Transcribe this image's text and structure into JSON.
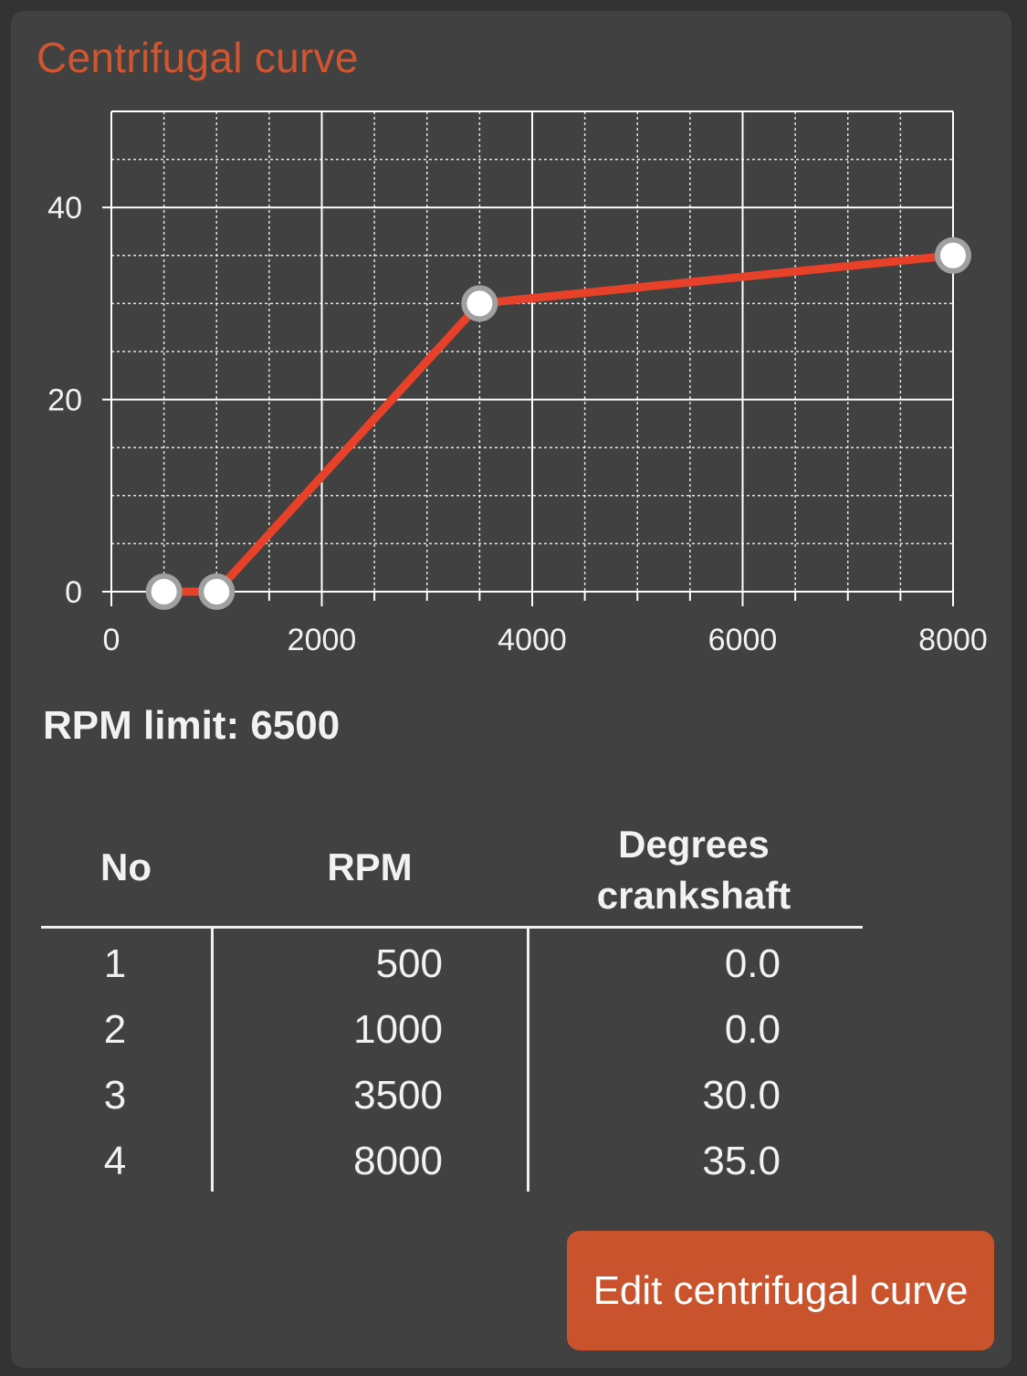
{
  "card": {
    "title": "Centrifugal curve"
  },
  "chart_data": {
    "type": "line",
    "x": [
      500,
      1000,
      3500,
      8000
    ],
    "y": [
      0,
      0,
      30,
      35
    ],
    "xlim": [
      0,
      8000
    ],
    "ylim": [
      0,
      50
    ],
    "x_ticks": [
      0,
      2000,
      4000,
      6000,
      8000
    ],
    "x_tick_labels": [
      "0",
      "2000",
      "4000",
      "6000",
      "8000"
    ],
    "y_ticks": [
      0,
      20,
      40
    ],
    "y_tick_labels": [
      "0",
      "20",
      "40"
    ],
    "x_minor_step": 500,
    "y_minor_step": 5,
    "grid": true,
    "line_color": "#e8412a",
    "marker_fill": "#ffffff",
    "marker_stroke": "#a0a0a0",
    "grid_color": "#ffffff"
  },
  "rpm_limit": {
    "text": "RPM limit: 6500"
  },
  "table": {
    "headers": {
      "no": "No",
      "rpm": "RPM",
      "degrees_line1": "Degrees",
      "degrees_line2": "crankshaft"
    },
    "rows": [
      {
        "no": "1",
        "rpm": "500",
        "degrees": "0.0"
      },
      {
        "no": "2",
        "rpm": "1000",
        "degrees": "0.0"
      },
      {
        "no": "3",
        "rpm": "3500",
        "degrees": "30.0"
      },
      {
        "no": "4",
        "rpm": "8000",
        "degrees": "35.0"
      }
    ]
  },
  "edit_button": {
    "label": "Edit centrifugal curve"
  },
  "colors": {
    "accent": "#c9532d",
    "title": "#cf5630",
    "card_bg": "#414141",
    "page_bg": "#333333"
  }
}
